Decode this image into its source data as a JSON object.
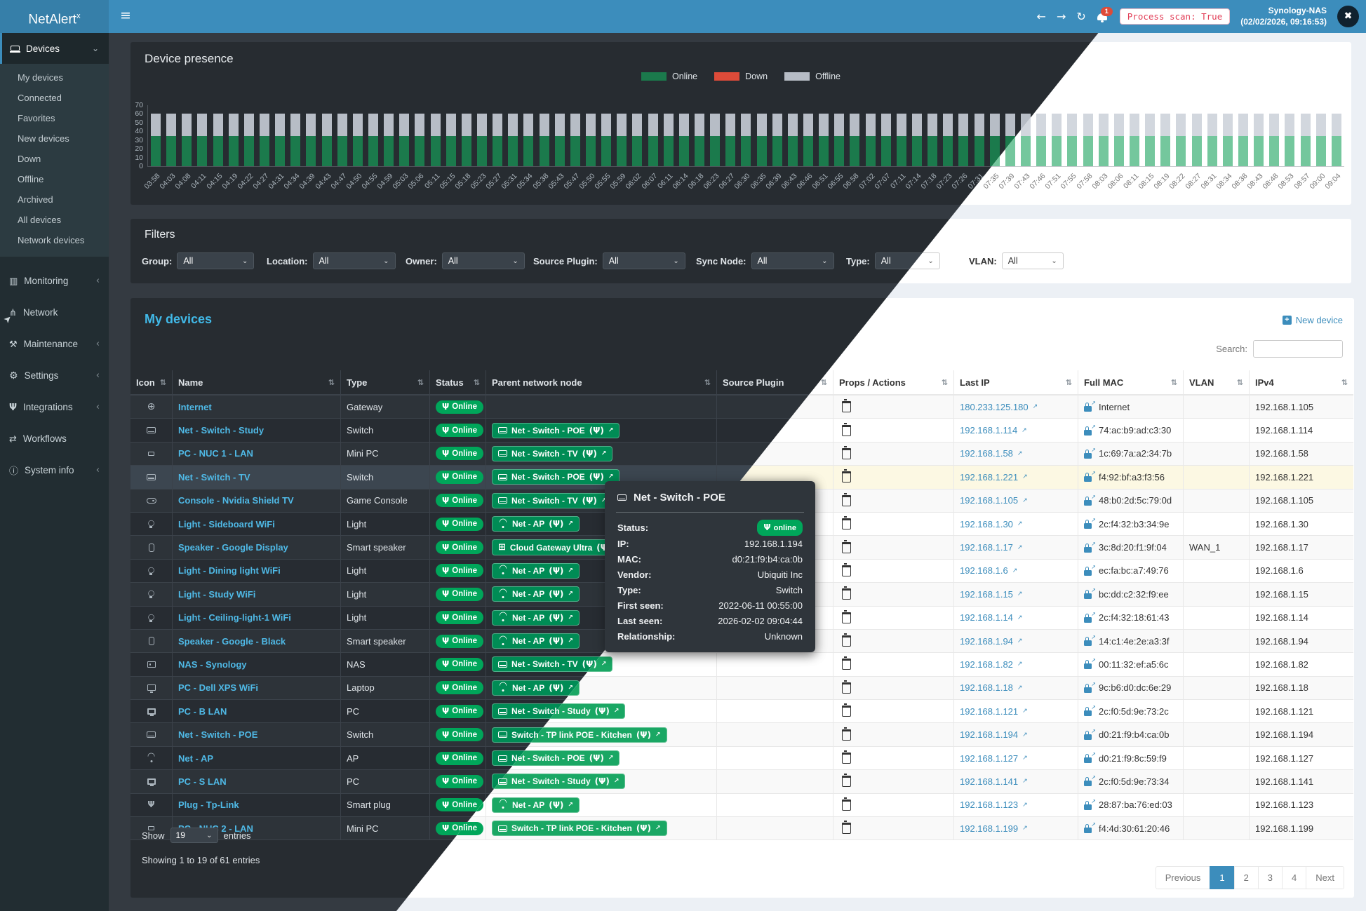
{
  "header": {
    "brand": "NetAlert",
    "brand_sup": "x",
    "bell_count": "1",
    "process_pill": "Process scan: True",
    "host": "Synology-NAS",
    "timestamp": "(02/02/2026, 09:16:53)"
  },
  "sidebar": {
    "devices_label": "Devices",
    "devices_submenu": [
      "My devices",
      "Connected",
      "Favorites",
      "New devices",
      "Down",
      "Offline",
      "Archived",
      "All devices",
      "Network devices"
    ],
    "items": [
      {
        "icon": "monitoring",
        "label": "Monitoring",
        "chevron": "left"
      },
      {
        "icon": "network",
        "label": "Network",
        "chevron": null
      },
      {
        "icon": "maintenance",
        "label": "Maintenance",
        "chevron": "left"
      },
      {
        "icon": "settings",
        "label": "Settings",
        "chevron": "left"
      },
      {
        "icon": "integrations",
        "label": "Integrations",
        "chevron": "left"
      },
      {
        "icon": "workflows",
        "label": "Workflows",
        "chevron": null
      },
      {
        "icon": "system-info",
        "label": "System info",
        "chevron": "left"
      }
    ]
  },
  "chart_data": {
    "type": "bar",
    "stacked": true,
    "title": "Device presence",
    "xlabel": "",
    "ylabel": "",
    "ylim": [
      0,
      70
    ],
    "yticks": [
      0,
      10,
      20,
      30,
      40,
      50,
      60,
      70
    ],
    "legend_position": "top",
    "grid": false,
    "categories": [
      "03:58",
      "04:03",
      "04:08",
      "04:11",
      "04:15",
      "04:19",
      "04:22",
      "04:27",
      "04:31",
      "04:34",
      "04:39",
      "04:43",
      "04:47",
      "04:50",
      "04:55",
      "04:59",
      "05:03",
      "05:06",
      "05:11",
      "05:15",
      "05:18",
      "05:23",
      "05:27",
      "05:31",
      "05:34",
      "05:38",
      "05:43",
      "05:47",
      "05:50",
      "05:55",
      "05:59",
      "06:02",
      "06:07",
      "06:11",
      "06:14",
      "06:18",
      "06:23",
      "06:27",
      "06:30",
      "06:35",
      "06:39",
      "06:43",
      "06:46",
      "06:51",
      "06:55",
      "06:58",
      "07:02",
      "07:07",
      "07:11",
      "07:14",
      "07:18",
      "07:23",
      "07:26",
      "07:31",
      "07:35",
      "07:39",
      "07:43",
      "07:46",
      "07:51",
      "07:55",
      "07:58",
      "08:03",
      "08:06",
      "08:11",
      "08:15",
      "08:19",
      "08:22",
      "08:27",
      "08:31",
      "08:34",
      "08:38",
      "08:43",
      "08:48",
      "08:53",
      "08:57",
      "09:00",
      "09:04"
    ],
    "series": [
      {
        "name": "Online",
        "color": "#1b7a4c",
        "values": [
          35,
          35,
          35,
          35,
          35,
          35,
          35,
          35,
          35,
          35,
          35,
          35,
          35,
          35,
          35,
          35,
          35,
          35,
          35,
          35,
          35,
          35,
          35,
          35,
          35,
          35,
          35,
          35,
          35,
          35,
          35,
          35,
          35,
          35,
          35,
          35,
          35,
          35,
          35,
          35,
          35,
          35,
          35,
          35,
          35,
          35,
          35,
          35,
          35,
          35,
          35,
          35,
          35,
          35,
          35,
          35,
          35,
          35,
          35,
          35,
          35,
          35,
          35,
          35,
          35,
          35,
          35,
          35,
          35,
          35,
          35,
          35,
          35,
          35,
          35,
          35,
          35
        ]
      },
      {
        "name": "Down",
        "color": "#dd4b39",
        "values": [
          0,
          0,
          0,
          0,
          0,
          0,
          0,
          0,
          0,
          0,
          0,
          0,
          0,
          0,
          0,
          0,
          0,
          0,
          0,
          0,
          0,
          0,
          0,
          0,
          0,
          0,
          0,
          0,
          0,
          0,
          0,
          0,
          0,
          0,
          0,
          0,
          0,
          0,
          0,
          0,
          0,
          0,
          0,
          0,
          0,
          0,
          0,
          0,
          0,
          0,
          0,
          0,
          0,
          0,
          0,
          0,
          0,
          0,
          0,
          0,
          0,
          0,
          0,
          0,
          0,
          0,
          0,
          0,
          0,
          0,
          0,
          0,
          0,
          0,
          0,
          0,
          0
        ]
      },
      {
        "name": "Offline",
        "color": "#b7bdc6",
        "values": [
          25,
          25,
          25,
          25,
          25,
          25,
          25,
          25,
          25,
          25,
          25,
          25,
          25,
          25,
          25,
          25,
          25,
          25,
          25,
          25,
          25,
          25,
          25,
          25,
          25,
          25,
          25,
          25,
          25,
          25,
          25,
          25,
          25,
          25,
          25,
          25,
          25,
          25,
          25,
          25,
          25,
          25,
          25,
          25,
          25,
          25,
          25,
          25,
          25,
          25,
          25,
          25,
          25,
          25,
          25,
          25,
          25,
          25,
          25,
          25,
          25,
          25,
          25,
          25,
          25,
          25,
          25,
          25,
          25,
          25,
          25,
          25,
          25,
          25,
          25,
          25,
          25
        ]
      }
    ]
  },
  "filters": {
    "title": "Filters",
    "fields": [
      {
        "label": "Group:",
        "value": "All"
      },
      {
        "label": "Location:",
        "value": "All"
      },
      {
        "label": "Owner:",
        "value": "All"
      },
      {
        "label": "Source Plugin:",
        "value": "All"
      },
      {
        "label": "Sync Node:",
        "value": "All"
      },
      {
        "label": "Type:",
        "value": "All"
      },
      {
        "label": "VLAN:",
        "value": "All"
      }
    ]
  },
  "devices": {
    "title": "My devices",
    "new_device_label": "New device",
    "search_label": "Search:",
    "search_value": "",
    "columns": [
      {
        "label": "Icon",
        "sort": true
      },
      {
        "label": "Name",
        "sort": true
      },
      {
        "label": "Type",
        "sort": true
      },
      {
        "label": "Status",
        "sort": true
      },
      {
        "label": "Parent network node",
        "sort": true
      },
      {
        "label": "Source Plugin",
        "sort": true
      },
      {
        "label": "Props / Actions",
        "sort": true
      },
      {
        "label": "Last IP",
        "sort": true
      },
      {
        "label": "Full MAC",
        "sort": true
      },
      {
        "label": "VLAN",
        "sort": true
      },
      {
        "label": "IPv4",
        "sort": true
      }
    ],
    "rows": [
      {
        "icon": "globe",
        "name": "Internet",
        "type": "Gateway",
        "status": "Online",
        "parent": null,
        "source_plugin": "",
        "last_ip": "180.233.125.180",
        "mac": "Internet",
        "vlan": "",
        "ipv4": "192.168.1.105",
        "highlight": false
      },
      {
        "icon": "switch",
        "name": "Net - Switch - Study",
        "type": "Switch",
        "status": "Online",
        "parent": {
          "icon": "switch",
          "label": "Net - Switch - POE"
        },
        "source_plugin": "",
        "last_ip": "192.168.1.114",
        "mac": "74:ac:b9:ad:c3:30",
        "vlan": "",
        "ipv4": "192.168.1.114",
        "highlight": false
      },
      {
        "icon": "minipc",
        "name": "PC - NUC 1 - LAN",
        "type": "Mini PC",
        "status": "Online",
        "parent": {
          "icon": "switch",
          "label": "Net - Switch - TV"
        },
        "source_plugin": "",
        "last_ip": "192.168.1.58",
        "mac": "1c:69:7a:a2:34:7b",
        "vlan": "",
        "ipv4": "192.168.1.58",
        "highlight": false
      },
      {
        "icon": "switch",
        "name": "Net - Switch - TV",
        "type": "Switch",
        "status": "Online",
        "parent": {
          "icon": "switch",
          "label": "Net - Switch - POE"
        },
        "source_plugin": "",
        "last_ip": "192.168.1.221",
        "mac": "f4:92:bf:a3:f3:56",
        "vlan": "",
        "ipv4": "192.168.1.221",
        "highlight": true
      },
      {
        "icon": "console",
        "name": "Console - Nvidia Shield TV",
        "type": "Game Console",
        "status": "Online",
        "parent": {
          "icon": "switch",
          "label": "Net - Switch - TV"
        },
        "source_plugin": "",
        "last_ip": "192.168.1.105",
        "mac": "48:b0:2d:5c:79:0d",
        "vlan": "",
        "ipv4": "192.168.1.105",
        "highlight": false
      },
      {
        "icon": "bulb",
        "name": "Light - Sideboard WiFi",
        "type": "Light",
        "status": "Online",
        "parent": {
          "icon": "wifi",
          "label": "Net - AP"
        },
        "source_plugin": "",
        "last_ip": "192.168.1.30",
        "mac": "2c:f4:32:b3:34:9e",
        "vlan": "",
        "ipv4": "192.168.1.30",
        "highlight": false
      },
      {
        "icon": "speaker",
        "name": "Speaker - Google Display",
        "type": "Smart speaker",
        "status": "Online",
        "parent": {
          "icon": "sitemap",
          "label": "Cloud Gateway Ultra"
        },
        "source_plugin": "",
        "last_ip": "192.168.1.17",
        "mac": "3c:8d:20:f1:9f:04",
        "vlan": "WAN_1",
        "ipv4": "192.168.1.17",
        "highlight": false
      },
      {
        "icon": "bulb",
        "name": "Light - Dining light WiFi",
        "type": "Light",
        "status": "Online",
        "parent": {
          "icon": "wifi",
          "label": "Net - AP"
        },
        "source_plugin": "",
        "last_ip": "192.168.1.6",
        "mac": "ec:fa:bc:a7:49:76",
        "vlan": "",
        "ipv4": "192.168.1.6",
        "highlight": false
      },
      {
        "icon": "bulb",
        "name": "Light - Study WiFi",
        "type": "Light",
        "status": "Online",
        "parent": {
          "icon": "wifi",
          "label": "Net - AP"
        },
        "source_plugin": "",
        "last_ip": "192.168.1.15",
        "mac": "bc:dd:c2:32:f9:ee",
        "vlan": "",
        "ipv4": "192.168.1.15",
        "highlight": false
      },
      {
        "icon": "bulb",
        "name": "Light - Ceiling-light-1 WiFi",
        "type": "Light",
        "status": "Online",
        "parent": {
          "icon": "wifi",
          "label": "Net - AP"
        },
        "source_plugin": "",
        "last_ip": "192.168.1.14",
        "mac": "2c:f4:32:18:61:43",
        "vlan": "",
        "ipv4": "192.168.1.14",
        "highlight": false
      },
      {
        "icon": "speaker",
        "name": "Speaker - Google - Black",
        "type": "Smart speaker",
        "status": "Online",
        "parent": {
          "icon": "wifi",
          "label": "Net - AP"
        },
        "source_plugin": "",
        "last_ip": "192.168.1.94",
        "mac": "14:c1:4e:2e:a3:3f",
        "vlan": "",
        "ipv4": "192.168.1.94",
        "highlight": false
      },
      {
        "icon": "nas",
        "name": "NAS - Synology",
        "type": "NAS",
        "status": "Online",
        "parent": {
          "icon": "switch",
          "label": "Net - Switch - TV"
        },
        "source_plugin": "",
        "last_ip": "192.168.1.82",
        "mac": "00:11:32:ef:a5:6c",
        "vlan": "",
        "ipv4": "192.168.1.82",
        "highlight": false
      },
      {
        "icon": "monitor",
        "name": "PC - Dell XPS WiFi",
        "type": "Laptop",
        "status": "Online",
        "parent": {
          "icon": "wifi",
          "label": "Net - AP"
        },
        "source_plugin": "",
        "last_ip": "192.168.1.18",
        "mac": "9c:b6:d0:dc:6e:29",
        "vlan": "",
        "ipv4": "192.168.1.18",
        "highlight": false
      },
      {
        "icon": "pc",
        "name": "PC - B LAN",
        "type": "PC",
        "status": "Online",
        "parent": {
          "icon": "switch",
          "label": "Net - Switch - Study"
        },
        "source_plugin": "",
        "last_ip": "192.168.1.121",
        "mac": "2c:f0:5d:9e:73:2c",
        "vlan": "",
        "ipv4": "192.168.1.121",
        "highlight": false
      },
      {
        "icon": "switch",
        "name": "Net - Switch - POE",
        "type": "Switch",
        "status": "Online",
        "parent": {
          "icon": "switch",
          "label": "Switch - TP link POE - Kitchen"
        },
        "source_plugin": "",
        "last_ip": "192.168.1.194",
        "mac": "d0:21:f9:b4:ca:0b",
        "vlan": "",
        "ipv4": "192.168.1.194",
        "highlight": false
      },
      {
        "icon": "wifi",
        "name": "Net - AP",
        "type": "AP",
        "status": "Online",
        "parent": {
          "icon": "switch",
          "label": "Net - Switch - POE"
        },
        "source_plugin": "",
        "last_ip": "192.168.1.127",
        "mac": "d0:21:f9:8c:59:f9",
        "vlan": "",
        "ipv4": "192.168.1.127",
        "highlight": false
      },
      {
        "icon": "pc",
        "name": "PC - S LAN",
        "type": "PC",
        "status": "Online",
        "parent": {
          "icon": "switch",
          "label": "Net - Switch - Study"
        },
        "source_plugin": "",
        "last_ip": "192.168.1.141",
        "mac": "2c:f0:5d:9e:73:34",
        "vlan": "",
        "ipv4": "192.168.1.141",
        "highlight": false
      },
      {
        "icon": "plug",
        "name": "Plug - Tp-Link",
        "type": "Smart plug",
        "status": "Online",
        "parent": {
          "icon": "wifi",
          "label": "Net - AP"
        },
        "source_plugin": "",
        "last_ip": "192.168.1.123",
        "mac": "28:87:ba:76:ed:03",
        "vlan": "",
        "ipv4": "192.168.1.123",
        "highlight": false
      },
      {
        "icon": "minipc",
        "name": "PC - NUC 2 - LAN",
        "type": "Mini PC",
        "status": "Online",
        "parent": {
          "icon": "switch",
          "label": "Switch - TP link POE - Kitchen"
        },
        "source_plugin": "",
        "last_ip": "192.168.1.199",
        "mac": "f4:4d:30:61:20:46",
        "vlan": "",
        "ipv4": "192.168.1.199",
        "highlight": false
      }
    ],
    "show_label": "Show",
    "page_size": "19",
    "entries_label": "entries",
    "summary": "Showing 1 to 19 of 61 entries",
    "pagination": {
      "prev": "Previous",
      "pages": [
        "1",
        "2",
        "3",
        "4"
      ],
      "active": "1",
      "next": "Next"
    }
  },
  "tooltip": {
    "icon": "switch",
    "title": "Net - Switch - POE",
    "rows": [
      {
        "label": "Status:",
        "value": "online",
        "type": "badge"
      },
      {
        "label": "IP:",
        "value": "192.168.1.194"
      },
      {
        "label": "MAC:",
        "value": "d0:21:f9:b4:ca:0b"
      },
      {
        "label": "Vendor:",
        "value": "Ubiquiti Inc"
      },
      {
        "label": "Type:",
        "value": "Switch"
      },
      {
        "label": "First seen:",
        "value": "2022-06-11 00:55:00"
      },
      {
        "label": "Last seen:",
        "value": "2026-02-02 09:04:44"
      },
      {
        "label": "Relationship:",
        "value": "Unknown"
      }
    ]
  },
  "colors": {
    "header": "#3c8dbc",
    "online_badge": "#00a65a",
    "down": "#dd4b39",
    "active_page": "#3c8dbc"
  }
}
